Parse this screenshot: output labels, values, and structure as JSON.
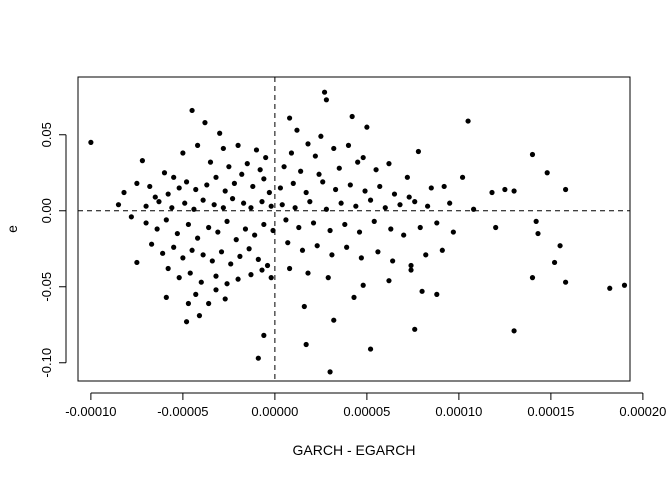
{
  "chart_data": {
    "type": "scatter",
    "title": "",
    "xlabel": "GARCH - EGARCH",
    "ylabel": "e",
    "xlim": [
      -0.000107,
      0.000193
    ],
    "ylim": [
      -0.112,
      0.088
    ],
    "xticks": [
      {
        "value": -0.0001,
        "label": "-0.00010"
      },
      {
        "value": -5e-05,
        "label": "-0.00005"
      },
      {
        "value": 0.0,
        "label": "0.00000"
      },
      {
        "value": 5e-05,
        "label": "0.00005"
      },
      {
        "value": 0.0001,
        "label": "0.00010"
      },
      {
        "value": 0.00015,
        "label": "0.00015"
      },
      {
        "value": 0.0002,
        "label": "0.00020"
      }
    ],
    "yticks": [
      {
        "value": -0.1,
        "label": "-0.10"
      },
      {
        "value": -0.05,
        "label": "-0.05"
      },
      {
        "value": 0.0,
        "label": "0.00"
      },
      {
        "value": 0.05,
        "label": "0.05"
      }
    ],
    "reference_lines": {
      "h": 0.0,
      "v": 0.0,
      "style": "dashed"
    },
    "grid": false,
    "legend": "none",
    "point_color": "#000000",
    "points": [
      [
        -0.0001,
        0.045
      ],
      [
        -4.5e-05,
        0.066
      ],
      [
        -3.8e-05,
        0.058
      ],
      [
        -3e-05,
        0.051
      ],
      [
        -4.2e-05,
        0.043
      ],
      [
        -2.8e-05,
        0.041
      ],
      [
        -2e-05,
        0.043
      ],
      [
        -1e-05,
        0.04
      ],
      [
        -7.2e-05,
        0.033
      ],
      [
        -6e-05,
        0.025
      ],
      [
        -5.5e-05,
        0.022
      ],
      [
        -5e-05,
        0.038
      ],
      [
        -3.5e-05,
        0.032
      ],
      [
        -2.5e-05,
        0.029
      ],
      [
        -1.5e-05,
        0.031
      ],
      [
        -5e-06,
        0.035
      ],
      [
        -8e-06,
        0.027
      ],
      [
        -8.2e-05,
        0.012
      ],
      [
        -7.5e-05,
        0.018
      ],
      [
        -6.8e-05,
        0.016
      ],
      [
        -6.5e-05,
        0.009
      ],
      [
        -5.8e-05,
        0.011
      ],
      [
        -5.2e-05,
        0.015
      ],
      [
        -4.8e-05,
        0.019
      ],
      [
        -4.3e-05,
        0.014
      ],
      [
        -3.7e-05,
        0.017
      ],
      [
        -3.2e-05,
        0.022
      ],
      [
        -2.7e-05,
        0.013
      ],
      [
        -2.2e-05,
        0.018
      ],
      [
        -1.8e-05,
        0.024
      ],
      [
        -1.2e-05,
        0.016
      ],
      [
        -6e-06,
        0.021
      ],
      [
        -3e-06,
        0.012
      ],
      [
        -8.5e-05,
        0.004
      ],
      [
        -7e-05,
        0.003
      ],
      [
        -6.3e-05,
        0.006
      ],
      [
        -5.6e-05,
        0.002
      ],
      [
        -4.9e-05,
        0.005
      ],
      [
        -4.4e-05,
        0.001
      ],
      [
        -3.9e-05,
        0.007
      ],
      [
        -3.3e-05,
        0.004
      ],
      [
        -2.8e-05,
        0.002
      ],
      [
        -2.3e-05,
        0.008
      ],
      [
        -1.7e-05,
        0.005
      ],
      [
        -1.3e-05,
        0.002
      ],
      [
        -7e-06,
        0.006
      ],
      [
        -2e-06,
        0.003
      ],
      [
        -7.8e-05,
        -0.004
      ],
      [
        -7e-05,
        -0.008
      ],
      [
        -6.4e-05,
        -0.012
      ],
      [
        -5.9e-05,
        -0.006
      ],
      [
        -5.3e-05,
        -0.015
      ],
      [
        -4.7e-05,
        -0.009
      ],
      [
        -4.2e-05,
        -0.018
      ],
      [
        -3.6e-05,
        -0.011
      ],
      [
        -3.1e-05,
        -0.014
      ],
      [
        -2.6e-05,
        -0.007
      ],
      [
        -2.1e-05,
        -0.019
      ],
      [
        -1.6e-05,
        -0.012
      ],
      [
        -1.1e-05,
        -0.016
      ],
      [
        -6e-06,
        -0.009
      ],
      [
        -1e-06,
        -0.013
      ],
      [
        -6.7e-05,
        -0.022
      ],
      [
        -6.1e-05,
        -0.028
      ],
      [
        -5.5e-05,
        -0.024
      ],
      [
        -5e-05,
        -0.031
      ],
      [
        -4.5e-05,
        -0.026
      ],
      [
        -3.9e-05,
        -0.029
      ],
      [
        -3.4e-05,
        -0.033
      ],
      [
        -2.9e-05,
        -0.027
      ],
      [
        -2.4e-05,
        -0.035
      ],
      [
        -1.9e-05,
        -0.03
      ],
      [
        -1.4e-05,
        -0.025
      ],
      [
        -9e-06,
        -0.032
      ],
      [
        -4e-06,
        -0.036
      ],
      [
        -7.5e-05,
        -0.034
      ],
      [
        -5.8e-05,
        -0.038
      ],
      [
        -5.2e-05,
        -0.044
      ],
      [
        -4.6e-05,
        -0.041
      ],
      [
        -4e-05,
        -0.047
      ],
      [
        -3.2e-05,
        -0.043
      ],
      [
        -2.6e-05,
        -0.048
      ],
      [
        -2e-05,
        -0.045
      ],
      [
        -1.3e-05,
        -0.042
      ],
      [
        -7e-06,
        -0.039
      ],
      [
        -2e-06,
        -0.044
      ],
      [
        -5.9e-05,
        -0.057
      ],
      [
        -4.7e-05,
        -0.061
      ],
      [
        -4.3e-05,
        -0.055
      ],
      [
        -3.6e-05,
        -0.061
      ],
      [
        -3.2e-05,
        -0.052
      ],
      [
        -2.7e-05,
        -0.058
      ],
      [
        -4.8e-05,
        -0.073
      ],
      [
        -4.1e-05,
        -0.069
      ],
      [
        -6e-06,
        -0.082
      ],
      [
        -9e-06,
        -0.097
      ],
      [
        8e-06,
        0.061
      ],
      [
        1.2e-05,
        0.053
      ],
      [
        2.5e-05,
        0.049
      ],
      [
        1.8e-05,
        0.044
      ],
      [
        9e-06,
        0.038
      ],
      [
        2.2e-05,
        0.036
      ],
      [
        3.2e-05,
        0.041
      ],
      [
        4e-05,
        0.043
      ],
      [
        4.8e-05,
        0.035
      ],
      [
        2.7e-05,
        0.078
      ],
      [
        2.8e-05,
        0.073
      ],
      [
        4.2e-05,
        0.062
      ],
      [
        5e-05,
        0.055
      ],
      [
        5e-06,
        0.029
      ],
      [
        1.4e-05,
        0.026
      ],
      [
        2.4e-05,
        0.024
      ],
      [
        3.5e-05,
        0.028
      ],
      [
        4.5e-05,
        0.032
      ],
      [
        5.5e-05,
        0.027
      ],
      [
        6.2e-05,
        0.031
      ],
      [
        7.2e-05,
        0.022
      ],
      [
        7.8e-05,
        0.039
      ],
      [
        3e-06,
        0.015
      ],
      [
        1e-05,
        0.018
      ],
      [
        1.7e-05,
        0.012
      ],
      [
        2.6e-05,
        0.019
      ],
      [
        3.3e-05,
        0.014
      ],
      [
        4.1e-05,
        0.017
      ],
      [
        4.9e-05,
        0.013
      ],
      [
        5.7e-05,
        0.016
      ],
      [
        6.5e-05,
        0.011
      ],
      [
        7.3e-05,
        0.009
      ],
      [
        8.5e-05,
        0.015
      ],
      [
        9.2e-05,
        0.016
      ],
      [
        0.000102,
        0.022
      ],
      [
        0.000105,
        0.059
      ],
      [
        4e-06,
        0.004
      ],
      [
        1.1e-05,
        0.002
      ],
      [
        1.9e-05,
        0.006
      ],
      [
        2.8e-05,
        0.001
      ],
      [
        3.6e-05,
        0.005
      ],
      [
        4.4e-05,
        0.003
      ],
      [
        5.2e-05,
        0.007
      ],
      [
        6e-05,
        0.002
      ],
      [
        6.8e-05,
        0.004
      ],
      [
        7.6e-05,
        0.006
      ],
      [
        8.3e-05,
        0.003
      ],
      [
        9.5e-05,
        0.005
      ],
      [
        0.000108,
        0.001
      ],
      [
        0.000118,
        0.012
      ],
      [
        0.000125,
        0.014
      ],
      [
        0.00013,
        0.013
      ],
      [
        0.00014,
        0.037
      ],
      [
        0.000148,
        0.025
      ],
      [
        0.000158,
        0.014
      ],
      [
        6e-06,
        -0.006
      ],
      [
        1.3e-05,
        -0.011
      ],
      [
        2.1e-05,
        -0.008
      ],
      [
        3e-05,
        -0.013
      ],
      [
        3.8e-05,
        -0.009
      ],
      [
        4.6e-05,
        -0.014
      ],
      [
        5.4e-05,
        -0.007
      ],
      [
        6.3e-05,
        -0.012
      ],
      [
        7e-05,
        -0.016
      ],
      [
        7.9e-05,
        -0.011
      ],
      [
        8.8e-05,
        -0.008
      ],
      [
        9.7e-05,
        -0.014
      ],
      [
        0.00012,
        -0.011
      ],
      [
        0.000142,
        -0.007
      ],
      [
        7e-06,
        -0.021
      ],
      [
        1.5e-05,
        -0.026
      ],
      [
        2.3e-05,
        -0.023
      ],
      [
        3.1e-05,
        -0.029
      ],
      [
        3.9e-05,
        -0.024
      ],
      [
        4.7e-05,
        -0.031
      ],
      [
        5.6e-05,
        -0.027
      ],
      [
        6.4e-05,
        -0.033
      ],
      [
        7.4e-05,
        -0.036
      ],
      [
        8.2e-05,
        -0.029
      ],
      [
        9.1e-05,
        -0.026
      ],
      [
        0.000143,
        -0.015
      ],
      [
        0.000155,
        -0.023
      ],
      [
        8e-06,
        -0.038
      ],
      [
        1.8e-05,
        -0.041
      ],
      [
        2.9e-05,
        -0.044
      ],
      [
        4.3e-05,
        -0.057
      ],
      [
        4.8e-05,
        -0.049
      ],
      [
        6.2e-05,
        -0.046
      ],
      [
        7.4e-05,
        -0.039
      ],
      [
        8e-05,
        -0.053
      ],
      [
        8.8e-05,
        -0.055
      ],
      [
        0.000152,
        -0.034
      ],
      [
        0.000158,
        -0.047
      ],
      [
        0.00014,
        -0.044
      ],
      [
        1.6e-05,
        -0.063
      ],
      [
        1.7e-05,
        -0.088
      ],
      [
        3.2e-05,
        -0.072
      ],
      [
        5.2e-05,
        -0.091
      ],
      [
        3e-05,
        -0.106
      ],
      [
        7.6e-05,
        -0.078
      ],
      [
        0.00013,
        -0.079
      ],
      [
        0.000182,
        -0.051
      ],
      [
        0.00019,
        -0.049
      ]
    ]
  }
}
